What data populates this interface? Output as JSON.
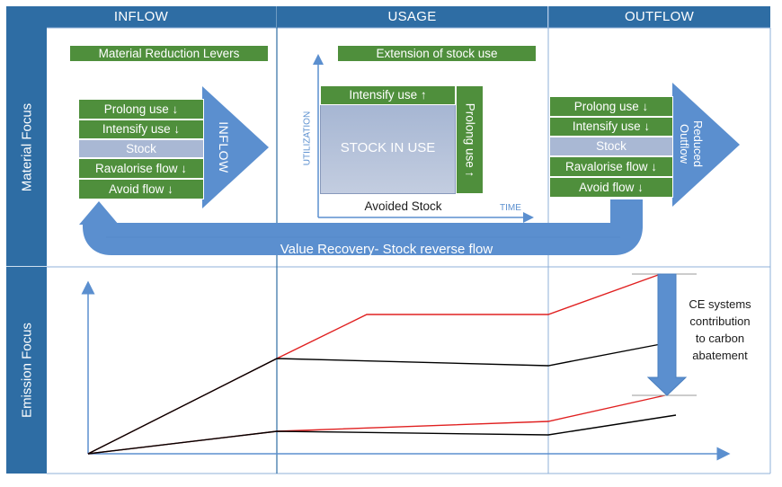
{
  "columns": {
    "inflow": "INFLOW",
    "usage": "USAGE",
    "outflow": "OUTFLOW"
  },
  "rows": {
    "material_focus": "Material Focus",
    "emission_focus": "Emission Focus"
  },
  "inflow": {
    "levers_title": "Material Reduction Levers",
    "items": [
      "Prolong use ↓",
      "Intensify use ↓",
      "Stock",
      "Ravalorise flow ↓",
      "Avoid flow ↓"
    ],
    "arrow_label": "INFLOW"
  },
  "usage": {
    "title": "Extension of stock use",
    "intensify": "Intensify use ↑",
    "prolong": "Prolong use ↑",
    "stock": "STOCK IN USE",
    "avoided": "Avoided Stock",
    "y_axis": "UTILIZATION",
    "x_axis": "TIME"
  },
  "outflow": {
    "items": [
      "Prolong use ↓",
      "Intensify use ↓",
      "Stock",
      "Ravalorise flow ↓",
      "Avoid flow ↓"
    ],
    "arrow_label_line1": "Reduced",
    "arrow_label_line2": "Outflow"
  },
  "recovery": {
    "label": "Value Recovery- Stock reverse flow"
  },
  "emission": {
    "annotation": [
      "CE systems",
      "contribution",
      "to carbon",
      "abatement"
    ]
  },
  "colors": {
    "header_blue": "#2e6da4",
    "arrow_blue": "#5b8fcf",
    "green": "#4f8f3c",
    "stock": "#a9b8d4",
    "red_line": "#e02020",
    "black_line": "#000000"
  }
}
